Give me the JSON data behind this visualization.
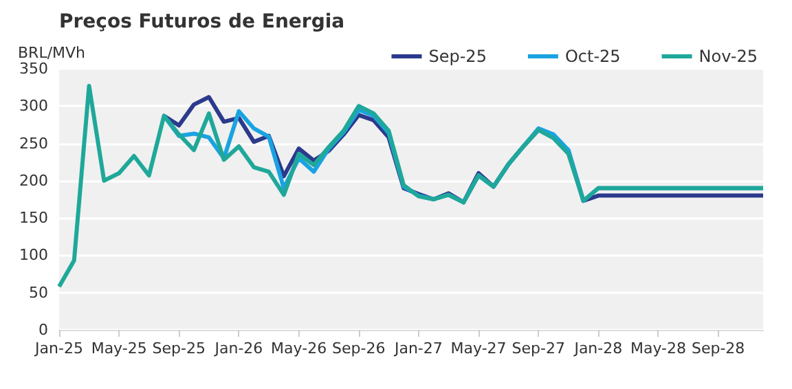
{
  "chart_data": {
    "type": "line",
    "title": "Preços Futuros de Energia",
    "ylabel": "BRL/MVh",
    "categories": [
      "Jan-25",
      null,
      null,
      null,
      "May-25",
      null,
      null,
      null,
      "Sep-25",
      null,
      null,
      null,
      "Jan-26",
      null,
      null,
      null,
      "May-26",
      null,
      null,
      null,
      "Sep-26",
      null,
      null,
      null,
      "Jan-27",
      null,
      null,
      null,
      "May-27",
      null,
      null,
      null,
      "Sep-27",
      null,
      null,
      null,
      "Jan-28",
      null,
      null,
      null,
      "May-28",
      null,
      null,
      null,
      "Sep-28",
      null,
      null,
      null
    ],
    "series": [
      {
        "name": "Sep-25",
        "color": "#2b3a8c",
        "values": [
          null,
          null,
          null,
          null,
          null,
          null,
          null,
          287,
          274,
          302,
          312,
          279,
          284,
          252,
          260,
          206,
          243,
          227,
          240,
          262,
          288,
          281,
          258,
          190,
          182,
          175,
          183,
          171,
          210,
          192,
          222,
          246,
          268,
          260,
          240,
          173,
          180,
          180,
          180,
          180,
          180,
          180,
          180,
          180,
          180,
          180,
          180,
          180
        ]
      },
      {
        "name": "Oct-25",
        "color": "#1aa3e0",
        "values": [
          null,
          null,
          null,
          null,
          null,
          null,
          null,
          287,
          260,
          263,
          258,
          230,
          293,
          270,
          259,
          190,
          230,
          212,
          243,
          265,
          295,
          287,
          264,
          192,
          180,
          175,
          181,
          171,
          207,
          192,
          222,
          246,
          270,
          262,
          241,
          173,
          190,
          190,
          190,
          190,
          190,
          190,
          190,
          190,
          190,
          190,
          190,
          190
        ]
      },
      {
        "name": "Nov-25",
        "color": "#1fa89a",
        "values": [
          58,
          93,
          327,
          200,
          210,
          233,
          207,
          287,
          262,
          241,
          290,
          228,
          246,
          218,
          212,
          181,
          236,
          221,
          245,
          267,
          300,
          290,
          267,
          194,
          179,
          175,
          181,
          171,
          207,
          192,
          222,
          246,
          268,
          257,
          236,
          173,
          190,
          190,
          190,
          190,
          190,
          190,
          190,
          190,
          190,
          190,
          190,
          190
        ]
      }
    ],
    "ylim": [
      0,
      350
    ],
    "yticks": [
      0,
      50,
      100,
      150,
      200,
      250,
      300,
      350
    ],
    "grid": "y",
    "legend": "top right",
    "marker": "none",
    "line_style": "solid"
  }
}
